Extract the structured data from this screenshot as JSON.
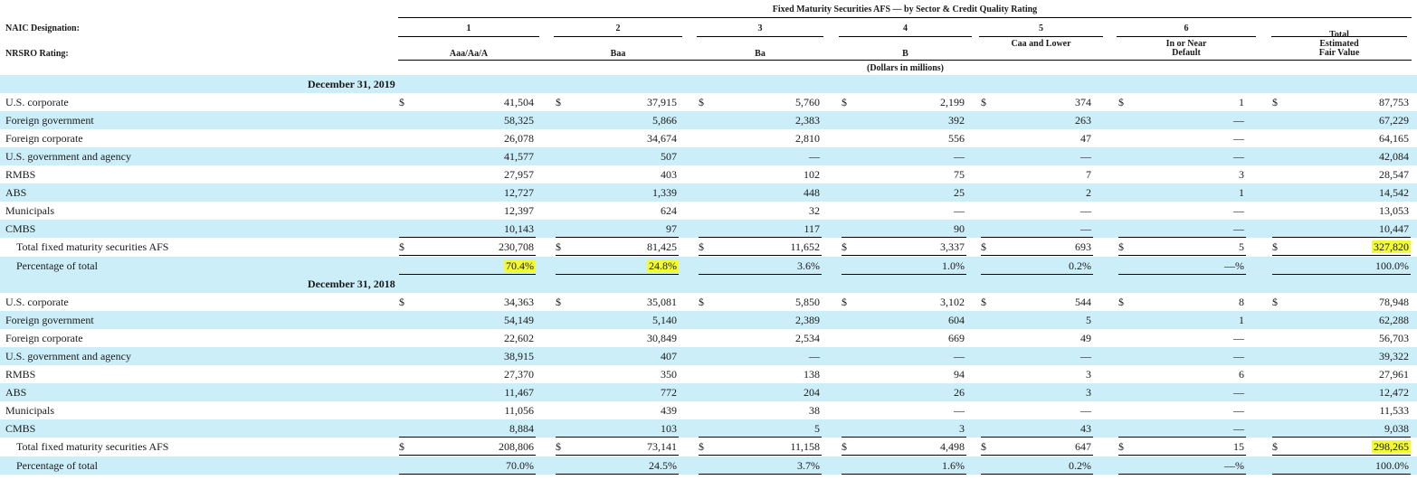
{
  "table_title": "Fixed Maturity Securities AFS — by Sector & Credit Quality Rating",
  "row_labels": {
    "naic": "NAIC Designation:",
    "nrsro": "NRSRO Rating:"
  },
  "columns": [
    {
      "naic": "1",
      "nrsro": "Aaa/Aa/A"
    },
    {
      "naic": "2",
      "nrsro": "Baa"
    },
    {
      "naic": "3",
      "nrsro": "Ba"
    },
    {
      "naic": "4",
      "nrsro": "B"
    },
    {
      "naic": "5",
      "nrsro": "Caa and Lower"
    },
    {
      "naic": "6",
      "nrsro": "In or Near Default"
    },
    {
      "naic": "",
      "nrsro": "Total Estimated Fair Value"
    }
  ],
  "units_note": "(Dollars in millions)",
  "currency_symbol": "$",
  "highlight_color": "#f2fb33",
  "band_color": "#cceef9",
  "sections": [
    {
      "date": "December 31, 2019",
      "rows": [
        {
          "label": "U.S. corporate",
          "values": [
            "41,504",
            "37,915",
            "5,760",
            "2,199",
            "374",
            "1",
            "87,753"
          ]
        },
        {
          "label": "Foreign government",
          "values": [
            "58,325",
            "5,866",
            "2,383",
            "392",
            "263",
            "—",
            "67,229"
          ]
        },
        {
          "label": "Foreign corporate",
          "values": [
            "26,078",
            "34,674",
            "2,810",
            "556",
            "47",
            "—",
            "64,165"
          ]
        },
        {
          "label": "U.S. government and agency",
          "values": [
            "41,577",
            "507",
            "—",
            "—",
            "—",
            "—",
            "42,084"
          ]
        },
        {
          "label": "RMBS",
          "values": [
            "27,957",
            "403",
            "102",
            "75",
            "7",
            "3",
            "28,547"
          ]
        },
        {
          "label": "ABS",
          "values": [
            "12,727",
            "1,339",
            "448",
            "25",
            "2",
            "1",
            "14,542"
          ]
        },
        {
          "label": "Municipals",
          "values": [
            "12,397",
            "624",
            "32",
            "—",
            "—",
            "—",
            "13,053"
          ]
        },
        {
          "label": "CMBS",
          "values": [
            "10,143",
            "97",
            "117",
            "90",
            "—",
            "—",
            "10,447"
          ]
        }
      ],
      "total": {
        "label": "Total fixed maturity securities AFS",
        "values": [
          "230,708",
          "81,425",
          "11,652",
          "3,337",
          "693",
          "5",
          "327,820"
        ]
      },
      "percent": {
        "label": "Percentage of total",
        "values": [
          "70.4%",
          "24.8%",
          "3.6%",
          "1.0%",
          "0.2%",
          "—%",
          "100.0%"
        ]
      }
    },
    {
      "date": "December 31, 2018",
      "rows": [
        {
          "label": "U.S. corporate",
          "values": [
            "34,363",
            "35,081",
            "5,850",
            "3,102",
            "544",
            "8",
            "78,948"
          ]
        },
        {
          "label": "Foreign government",
          "values": [
            "54,149",
            "5,140",
            "2,389",
            "604",
            "5",
            "1",
            "62,288"
          ]
        },
        {
          "label": "Foreign corporate",
          "values": [
            "22,602",
            "30,849",
            "2,534",
            "669",
            "49",
            "—",
            "56,703"
          ]
        },
        {
          "label": "U.S. government and agency",
          "values": [
            "38,915",
            "407",
            "—",
            "—",
            "—",
            "—",
            "39,322"
          ]
        },
        {
          "label": "RMBS",
          "values": [
            "27,370",
            "350",
            "138",
            "94",
            "3",
            "6",
            "27,961"
          ]
        },
        {
          "label": "ABS",
          "values": [
            "11,467",
            "772",
            "204",
            "26",
            "3",
            "—",
            "12,472"
          ]
        },
        {
          "label": "Municipals",
          "values": [
            "11,056",
            "439",
            "38",
            "—",
            "—",
            "—",
            "11,533"
          ]
        },
        {
          "label": "CMBS",
          "values": [
            "8,884",
            "103",
            "5",
            "3",
            "43",
            "—",
            "9,038"
          ]
        }
      ],
      "total": {
        "label": "Total fixed maturity securities AFS",
        "values": [
          "208,806",
          "73,141",
          "11,158",
          "4,498",
          "647",
          "15",
          "298,265"
        ]
      },
      "percent": {
        "label": "Percentage of total",
        "values": [
          "70.0%",
          "24.5%",
          "3.7%",
          "1.6%",
          "0.2%",
          "—%",
          "100.0%"
        ]
      }
    }
  ]
}
